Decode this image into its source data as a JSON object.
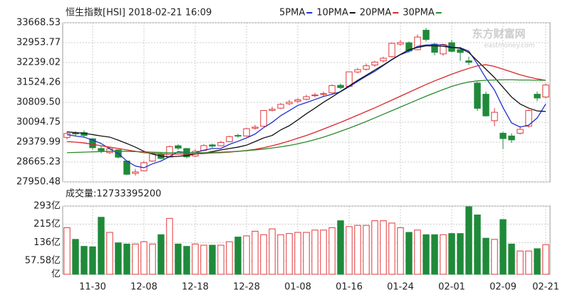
{
  "chart_data": [
    {
      "type": "candlestick",
      "title": "恒生指数[HSI] 2018-02-21 16:09",
      "watermark": "东方财富网",
      "watermark_sub": "eastmoney.com",
      "categories": [
        null,
        null,
        null,
        "11-30",
        null,
        null,
        null,
        null,
        null,
        "12-08",
        null,
        null,
        null,
        null,
        null,
        "12-18",
        null,
        null,
        null,
        null,
        null,
        "12-28",
        null,
        null,
        null,
        null,
        null,
        "01-08",
        null,
        null,
        null,
        null,
        null,
        "01-16",
        null,
        null,
        null,
        null,
        null,
        "01-24",
        null,
        null,
        null,
        null,
        null,
        "02-01",
        null,
        null,
        null,
        null,
        null,
        "02-09",
        null,
        null,
        null,
        null,
        "02-21"
      ],
      "open": [
        29550,
        29700,
        29720,
        29500,
        29150,
        29000,
        29100,
        28700,
        28260,
        28350,
        28700,
        28950,
        28850,
        29250,
        29150,
        28880,
        29080,
        29280,
        29250,
        29400,
        29620,
        29600,
        29880,
        29950,
        30520,
        30600,
        30760,
        30850,
        30920,
        31050,
        31100,
        31150,
        31420,
        31380,
        31900,
        32000,
        32150,
        32300,
        32450,
        32900,
        32950,
        32700,
        33400,
        32900,
        32550,
        32950,
        32700,
        32300,
        31500,
        31100,
        30150,
        29700,
        29600,
        29700,
        29950,
        31100,
        31000
      ],
      "high": [
        29760,
        29780,
        29800,
        29520,
        29250,
        29220,
        29120,
        28720,
        28420,
        28700,
        29010,
        29000,
        29260,
        29300,
        29170,
        29120,
        29300,
        29330,
        29420,
        29610,
        29680,
        29900,
        30000,
        30530,
        30650,
        30780,
        30900,
        30960,
        31080,
        31150,
        31200,
        31450,
        31480,
        31920,
        32050,
        32200,
        32300,
        32450,
        32960,
        33050,
        33000,
        33250,
        33484,
        32950,
        32920,
        33050,
        32800,
        32450,
        31550,
        31200,
        30600,
        29750,
        29700,
        29950,
        30550,
        31200,
        31480
      ],
      "low": [
        29480,
        29600,
        29540,
        29100,
        28980,
        28950,
        28800,
        28190,
        28180,
        28330,
        28680,
        28760,
        28830,
        29100,
        28800,
        28850,
        29050,
        29180,
        29220,
        29380,
        29540,
        29580,
        29830,
        29930,
        30480,
        30570,
        30700,
        30780,
        30880,
        30990,
        31030,
        31120,
        31280,
        31360,
        31850,
        31950,
        32080,
        32250,
        32420,
        32850,
        32600,
        32680,
        33000,
        32500,
        32480,
        32600,
        32300,
        32150,
        30500,
        30300,
        29950,
        29130,
        29350,
        29650,
        29900,
        30850,
        30950
      ],
      "close": [
        29690,
        29680,
        29620,
        29180,
        29075,
        29140,
        28840,
        28225,
        28310,
        28640,
        28965,
        28795,
        29220,
        29165,
        28850,
        29050,
        29255,
        29234,
        29368,
        29578,
        29597,
        29863,
        29919,
        30516,
        30560,
        30736,
        30814,
        30899,
        31012,
        31073,
        31121,
        31412,
        31338,
        31904,
        31983,
        32121,
        32255,
        32393,
        32930,
        32958,
        32654,
        33154,
        33069,
        32607,
        32887,
        32642,
        32601,
        32245,
        30595,
        30323,
        30451,
        29507,
        29460,
        29840,
        30515,
        30965,
        31431
      ],
      "up_color": "#e0393c",
      "down_color": "#1f8a3a",
      "series": [
        {
          "name": "5PMA",
          "color": "#1f2fd0",
          "values": [
            29650,
            29600,
            29560,
            29450,
            29330,
            29140,
            28970,
            28700,
            28520,
            28460,
            28600,
            28700,
            28860,
            29040,
            29000,
            29000,
            29090,
            29150,
            29150,
            29300,
            29410,
            29530,
            29670,
            29900,
            30090,
            30330,
            30510,
            30700,
            30800,
            30910,
            31020,
            31100,
            31190,
            31370,
            31560,
            31750,
            31920,
            32130,
            32340,
            32520,
            32640,
            32820,
            32870,
            32880,
            32870,
            32790,
            32770,
            32650,
            32190,
            31680,
            31250,
            30620,
            30070,
            29920,
            29990,
            30250,
            30750
          ]
        },
        {
          "name": "10PMA",
          "color": "#111111",
          "values": [
            29750,
            29720,
            29700,
            29650,
            29600,
            29560,
            29450,
            29330,
            29200,
            29050,
            28950,
            28880,
            28850,
            28870,
            28900,
            28950,
            28980,
            29040,
            29100,
            29150,
            29200,
            29270,
            29400,
            29530,
            29620,
            29820,
            29970,
            30180,
            30400,
            30600,
            30810,
            31000,
            31200,
            31400,
            31600,
            31780,
            31970,
            32150,
            32350,
            32530,
            32700,
            32780,
            32840,
            32840,
            32820,
            32780,
            32750,
            32600,
            32300,
            32000,
            31700,
            31350,
            31000,
            30750,
            30600,
            30500,
            30480
          ]
        },
        {
          "name": "20PMA",
          "color": "#d9262b",
          "values": [
            29400,
            29380,
            29350,
            29300,
            29250,
            29200,
            29150,
            29100,
            29050,
            29000,
            28980,
            28960,
            28950,
            28950,
            28950,
            28960,
            28970,
            28990,
            29000,
            29020,
            29050,
            29080,
            29120,
            29180,
            29250,
            29330,
            29420,
            29520,
            29620,
            29730,
            29850,
            29970,
            30090,
            30220,
            30350,
            30480,
            30610,
            30750,
            30890,
            31030,
            31170,
            31310,
            31450,
            31580,
            31700,
            31820,
            31930,
            32030,
            32120,
            32160,
            32100,
            32000,
            31900,
            31800,
            31720,
            31650,
            31600
          ]
        },
        {
          "name": "30PMA",
          "color": "#2b8a2b",
          "values": [
            29000,
            29010,
            29020,
            29030,
            29040,
            29050,
            29050,
            29050,
            29040,
            29030,
            29020,
            29010,
            29000,
            29000,
            29000,
            29000,
            29000,
            29010,
            29020,
            29030,
            29050,
            29070,
            29100,
            29130,
            29170,
            29210,
            29260,
            29320,
            29390,
            29470,
            29560,
            29660,
            29770,
            29880,
            30000,
            30120,
            30250,
            30380,
            30510,
            30640,
            30770,
            30900,
            31030,
            31150,
            31270,
            31380,
            31470,
            31540,
            31580,
            31600,
            31610,
            31620,
            31620,
            31610,
            31610,
            31600,
            31600
          ]
        }
      ],
      "ylim": [
        27950.48,
        33668.53
      ],
      "yticks": [
        33668.53,
        32953.77,
        32239.02,
        31524.26,
        {
          "value": 30809.5,
          "label": "30809.50"
        },
        30094.75,
        29379.99,
        28665.23,
        27950.48
      ],
      "grid": true
    },
    {
      "type": "bar",
      "title": "成交量:12733395200",
      "values": [
        200,
        150,
        120,
        118,
        245,
        180,
        135,
        130,
        130,
        140,
        130,
        170,
        240,
        130,
        120,
        130,
        125,
        125,
        125,
        140,
        160,
        165,
        185,
        170,
        195,
        170,
        175,
        180,
        180,
        190,
        190,
        200,
        230,
        205,
        210,
        210,
        230,
        230,
        220,
        200,
        180,
        190,
        170,
        170,
        170,
        175,
        175,
        290,
        255,
        155,
        150,
        235,
        130,
        100,
        100,
        110,
        127.33
      ],
      "ylim": [
        0,
        293
      ],
      "yticks": [
        {
          "value": 293,
          "label": "293亿"
        },
        {
          "value": 215,
          "label": "215亿"
        },
        {
          "value": 136,
          "label": "136亿"
        },
        {
          "value": 57.58,
          "label": "57.58亿"
        },
        {
          "value": 0,
          "label": "亿"
        }
      ],
      "grid": true
    }
  ]
}
